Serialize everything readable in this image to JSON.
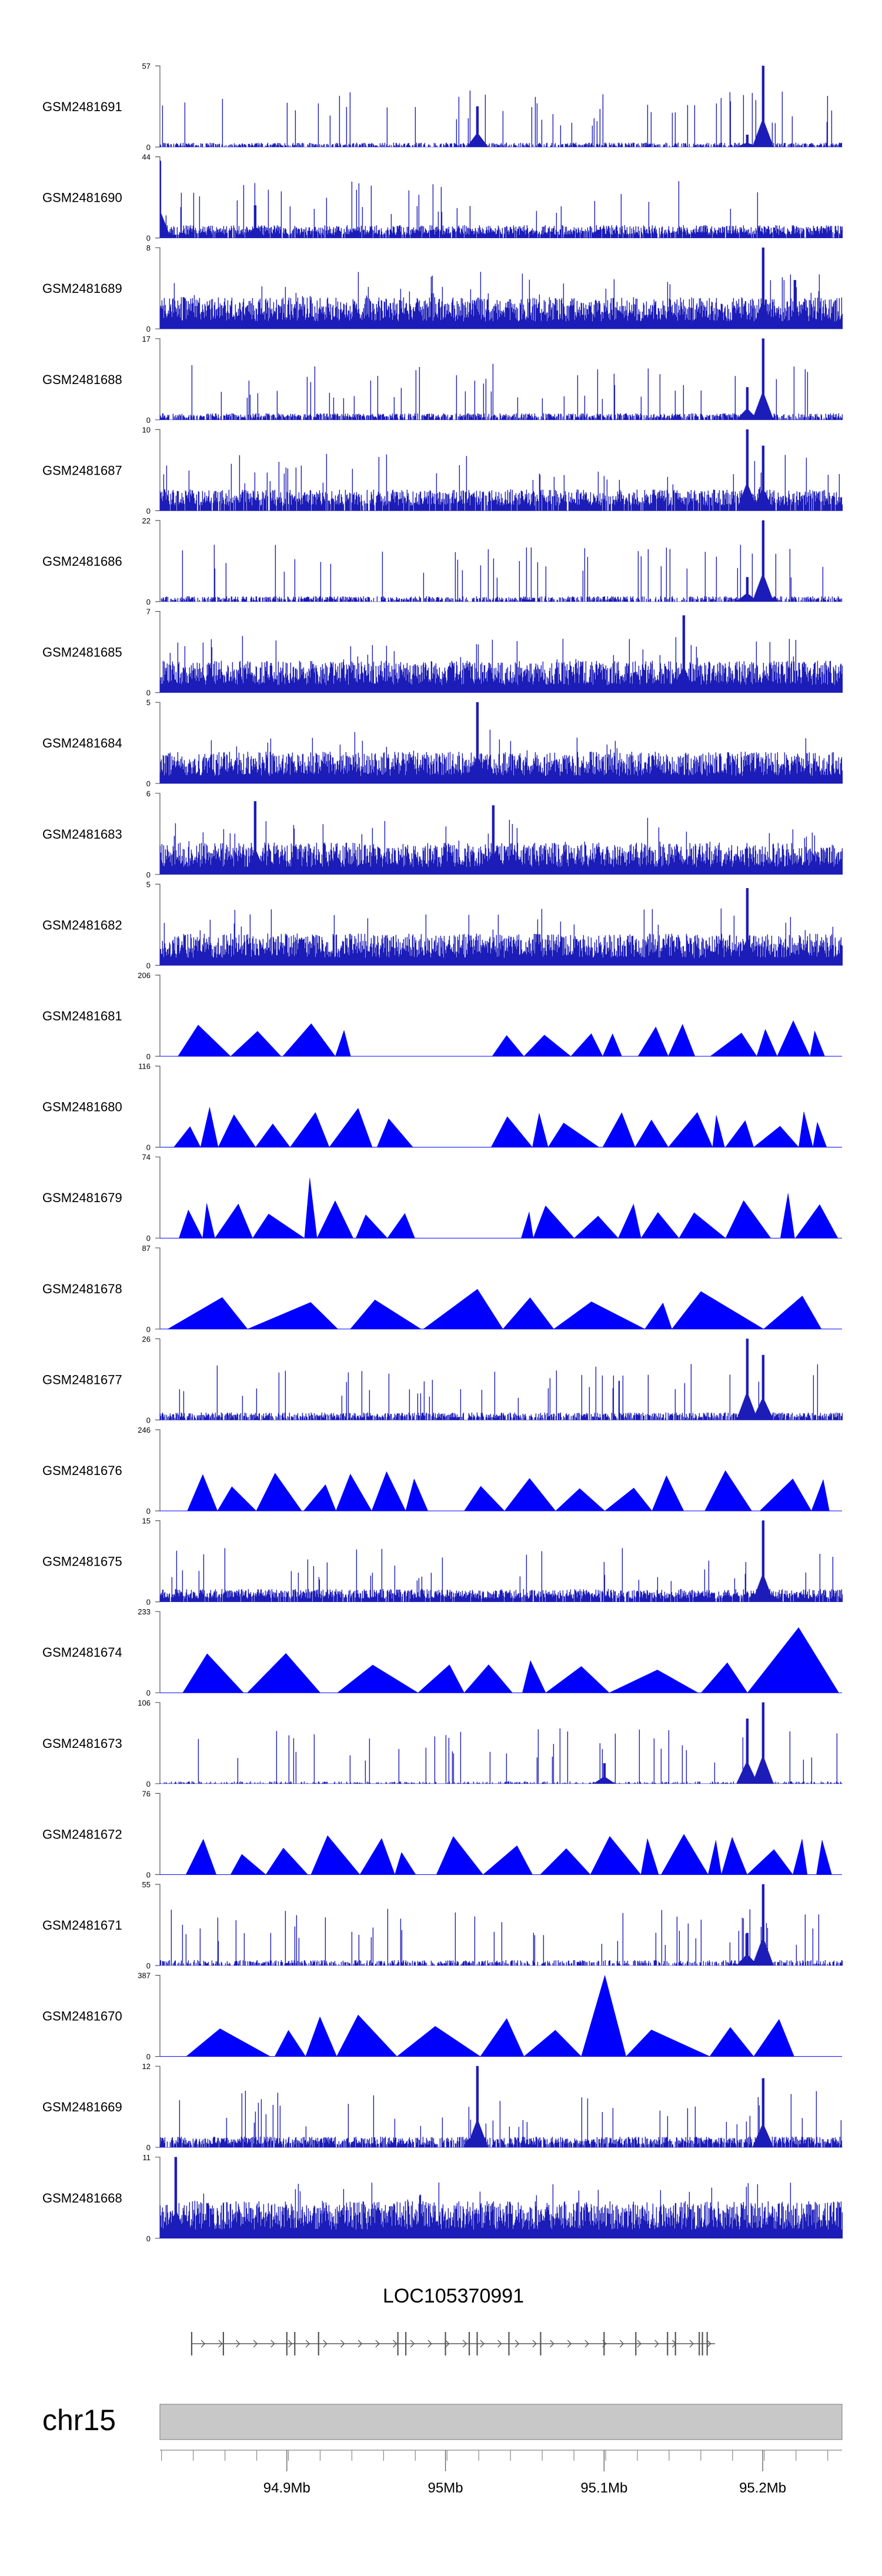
{
  "colors": {
    "signal": "#1c1cb8",
    "peak": "#0000ff",
    "gene": "#555555",
    "ideogram": "#c8c8c8"
  },
  "chart_data": {
    "type": "area",
    "title": "",
    "x_range_mb": [
      94.82,
      95.25
    ],
    "tracks": [
      {
        "name": "GSM2481691",
        "ymax": "57",
        "ymin": "0",
        "style": "signal",
        "seed": 11,
        "density": 0.6,
        "base": 0.04,
        "hot": [
          [
            95.02,
            0.5
          ],
          [
            95.2,
            1.0
          ],
          [
            95.19,
            0.15
          ]
        ]
      },
      {
        "name": "GSM2481690",
        "ymax": "44",
        "ymin": "0",
        "style": "signal",
        "seed": 12,
        "density": 0.9,
        "base": 0.12,
        "hot": [
          [
            94.82,
            0.95
          ],
          [
            94.88,
            0.4
          ]
        ]
      },
      {
        "name": "GSM2481689",
        "ymax": "8",
        "ymin": "0",
        "style": "signal",
        "seed": 13,
        "density": 1.0,
        "base": 0.3,
        "hot": [
          [
            95.2,
            1.0
          ],
          [
            95.22,
            0.6
          ]
        ]
      },
      {
        "name": "GSM2481688",
        "ymax": "17",
        "ymin": "0",
        "style": "signal",
        "seed": 14,
        "density": 0.7,
        "base": 0.06,
        "hot": [
          [
            95.2,
            1.0
          ],
          [
            95.19,
            0.4
          ]
        ]
      },
      {
        "name": "GSM2481687",
        "ymax": "10",
        "ymin": "0",
        "style": "signal",
        "seed": 15,
        "density": 0.9,
        "base": 0.2,
        "hot": [
          [
            95.19,
            1.0
          ],
          [
            95.2,
            0.8
          ]
        ]
      },
      {
        "name": "GSM2481686",
        "ymax": "22",
        "ymin": "0",
        "style": "signal",
        "seed": 16,
        "density": 0.6,
        "base": 0.05,
        "hot": [
          [
            95.2,
            1.0
          ],
          [
            95.19,
            0.3
          ]
        ]
      },
      {
        "name": "GSM2481685",
        "ymax": "7",
        "ymin": "0",
        "style": "signal",
        "seed": 17,
        "density": 1.0,
        "base": 0.3,
        "hot": [
          [
            95.15,
            0.95
          ]
        ]
      },
      {
        "name": "GSM2481684",
        "ymax": "5",
        "ymin": "0",
        "style": "signal",
        "seed": 18,
        "density": 1.0,
        "base": 0.3,
        "hot": [
          [
            95.02,
            1.0
          ]
        ]
      },
      {
        "name": "GSM2481683",
        "ymax": "6",
        "ymin": "0",
        "style": "signal",
        "seed": 19,
        "density": 1.0,
        "base": 0.3,
        "hot": [
          [
            94.88,
            0.9
          ],
          [
            95.03,
            0.85
          ]
        ]
      },
      {
        "name": "GSM2481682",
        "ymax": "5",
        "ymin": "0",
        "style": "signal",
        "seed": 20,
        "density": 1.0,
        "base": 0.3,
        "hot": [
          [
            95.19,
            0.95
          ]
        ]
      },
      {
        "name": "GSM2481681",
        "ymax": "206",
        "ymin": "0",
        "style": "peaks",
        "seed": 21,
        "gaps": [
          [
            94.95,
            95.01
          ]
        ],
        "hot": [
          [
            95.2,
            1.0
          ],
          [
            95.05,
            0.7
          ]
        ]
      },
      {
        "name": "GSM2481680",
        "ymax": "116",
        "ymin": "0",
        "style": "peaks",
        "seed": 22,
        "gaps": [
          [
            95.0,
            95.01
          ]
        ],
        "hot": [
          [
            94.93,
            0.75
          ],
          [
            95.14,
            0.85
          ]
        ]
      },
      {
        "name": "GSM2481679",
        "ymax": "74",
        "ymin": "0",
        "style": "peaks",
        "seed": 23,
        "gaps": [
          [
            95.0,
            95.03
          ]
        ],
        "hot": [
          [
            94.86,
            0.9
          ]
        ]
      },
      {
        "name": "GSM2481678",
        "ymax": "87",
        "ymin": "0",
        "style": "peaks",
        "seed": 24,
        "gaps": [],
        "hot": [
          [
            95.03,
            0.95
          ],
          [
            95.16,
            0.7
          ]
        ]
      },
      {
        "name": "GSM2481677",
        "ymax": "26",
        "ymin": "0",
        "style": "signal",
        "seed": 25,
        "density": 0.7,
        "base": 0.07,
        "hot": [
          [
            95.19,
            1.0
          ],
          [
            95.2,
            0.8
          ]
        ]
      },
      {
        "name": "GSM2481676",
        "ymax": "246",
        "ymin": "0",
        "style": "peaks",
        "seed": 26,
        "gaps": [
          [
            95.0,
            95.01
          ]
        ],
        "hot": [
          [
            95.18,
            1.0
          ]
        ]
      },
      {
        "name": "GSM2481675",
        "ymax": "15",
        "ymin": "0",
        "style": "signal",
        "seed": 27,
        "density": 0.9,
        "base": 0.12,
        "hot": [
          [
            95.2,
            1.0
          ]
        ]
      },
      {
        "name": "GSM2481674",
        "ymax": "233",
        "ymin": "0",
        "style": "peaks",
        "seed": 28,
        "gaps": [],
        "hot": [
          [
            94.83,
            1.0
          ],
          [
            94.93,
            0.95
          ],
          [
            95.19,
            1.0
          ]
        ]
      },
      {
        "name": "GSM2481673",
        "ymax": "106",
        "ymin": "0",
        "style": "signal",
        "seed": 29,
        "density": 0.3,
        "base": 0.02,
        "hot": [
          [
            95.19,
            0.8
          ],
          [
            95.2,
            1.0
          ],
          [
            95.1,
            0.25
          ]
        ]
      },
      {
        "name": "GSM2481672",
        "ymax": "76",
        "ymin": "0",
        "style": "peaks",
        "seed": 30,
        "gaps": [],
        "hot": [
          [
            94.84,
            0.9
          ],
          [
            95.0,
            0.9
          ]
        ]
      },
      {
        "name": "GSM2481671",
        "ymax": "55",
        "ymin": "0",
        "style": "signal",
        "seed": 31,
        "density": 0.5,
        "base": 0.05,
        "hot": [
          [
            95.2,
            1.0
          ],
          [
            95.19,
            0.4
          ]
        ]
      },
      {
        "name": "GSM2481670",
        "ymax": "387",
        "ymin": "0",
        "style": "peaks",
        "seed": 32,
        "gaps": [
          [
            94.97,
            95.0
          ]
        ],
        "hot": [
          [
            95.02,
            1.0
          ],
          [
            95.1,
            1.0
          ],
          [
            95.07,
            0.7
          ]
        ]
      },
      {
        "name": "GSM2481669",
        "ymax": "12",
        "ymin": "0",
        "style": "signal",
        "seed": 33,
        "density": 0.8,
        "base": 0.1,
        "hot": [
          [
            95.02,
            1.0
          ],
          [
            95.2,
            0.85
          ]
        ]
      },
      {
        "name": "GSM2481668",
        "ymax": "11",
        "ymin": "0",
        "style": "signal",
        "seed": 34,
        "density": 1.0,
        "base": 0.35,
        "hot": [
          [
            94.83,
            1.0
          ]
        ]
      }
    ],
    "gene": {
      "name": "LOC105370991",
      "start_mb": 94.84,
      "end_mb": 95.17,
      "exons_mb": [
        94.84,
        94.86,
        94.9,
        94.905,
        94.92,
        94.97,
        94.975,
        95.0,
        95.015,
        95.02,
        95.04,
        95.06,
        95.1,
        95.12,
        95.14,
        95.145,
        95.16,
        95.162,
        95.165
      ]
    },
    "ideogram": {
      "chromosome": "chr15"
    },
    "axis": {
      "ticks_mb": [
        94.9,
        95.0,
        95.1,
        95.2
      ],
      "tick_labels": [
        "94.9Mb",
        "95Mb",
        "95.1Mb",
        "95.2Mb"
      ],
      "minor_step_mb": 0.02
    }
  }
}
